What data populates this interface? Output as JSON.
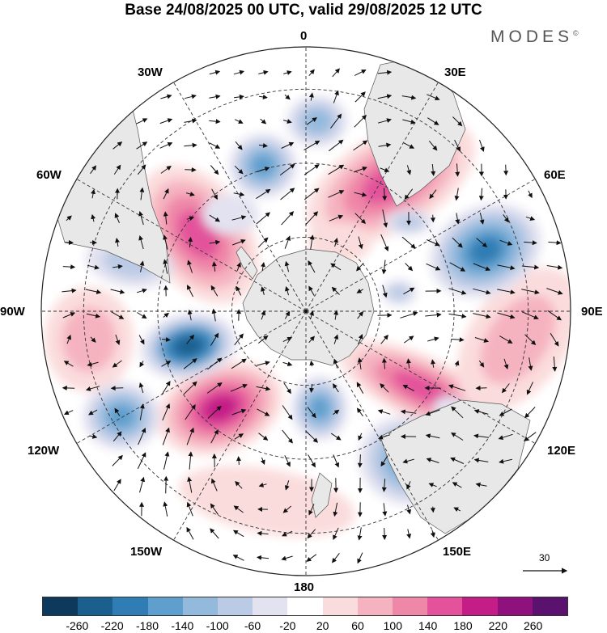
{
  "title": "Base 24/08/2025 00 UTC, valid 29/08/2025 12 UTC",
  "brand": "MODES",
  "brand_mark": "©",
  "meridian_labels": {
    "top": "0",
    "bottom": "180",
    "left": "90W",
    "right": "90E",
    "w30": "30W",
    "e30": "30E",
    "w60": "60W",
    "e60": "60E",
    "w120": "120W",
    "e120": "120E",
    "w150": "150W",
    "e150": "150E"
  },
  "vector_reference": "30",
  "colorbar": {
    "colors": [
      "#0d3a5c",
      "#1b5f8e",
      "#2f7db4",
      "#5f9fcd",
      "#93b9dd",
      "#bccbe5",
      "#e3e2f0",
      "#ffffff",
      "#fbdcdc",
      "#f5b3c0",
      "#ef87a8",
      "#e3529b",
      "#c41d87",
      "#8e117d",
      "#5b116e"
    ],
    "ticks": [
      "-260",
      "-220",
      "-180",
      "-140",
      "-100",
      "-60",
      "-20",
      "20",
      "60",
      "100",
      "140",
      "180",
      "220",
      "260"
    ]
  },
  "colors": {
    "land": "#e8e8e8",
    "coast": "#555555",
    "grid": "#333333"
  }
}
